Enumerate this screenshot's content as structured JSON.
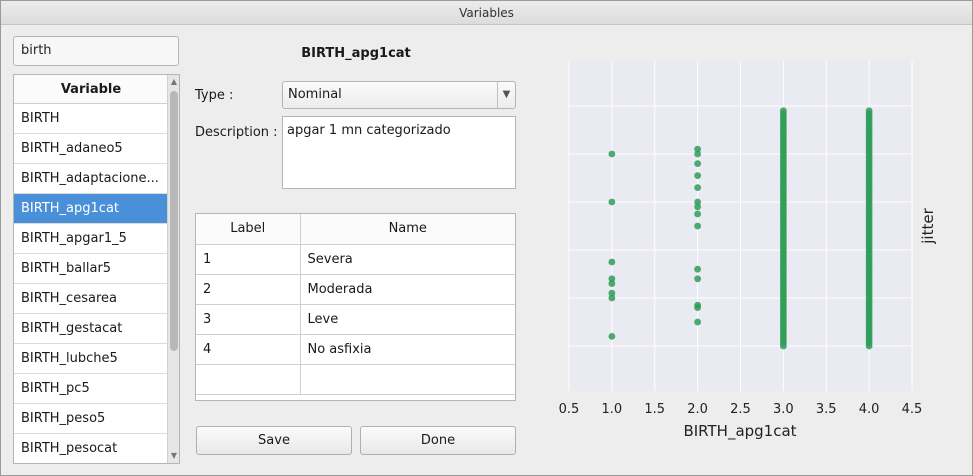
{
  "window": {
    "title": "Variables"
  },
  "search": {
    "value": "birth"
  },
  "variable_list": {
    "header": "Variable",
    "items": [
      "BIRTH",
      "BIRTH_adaneo5",
      "BIRTH_adaptacione...",
      "BIRTH_apg1cat",
      "BIRTH_apgar1_5",
      "BIRTH_ballar5",
      "BIRTH_cesarea",
      "BIRTH_gestacat",
      "BIRTH_lubche5",
      "BIRTH_pc5",
      "BIRTH_peso5",
      "BIRTH_pesocat"
    ],
    "selected_index": 3
  },
  "detail": {
    "variable_name": "BIRTH_apg1cat",
    "type_label": "Type :",
    "type_value": "Nominal",
    "description_label": "Description :",
    "description_value": "apgar 1 mn categorizado"
  },
  "labels_table": {
    "headers": [
      "Label",
      "Name"
    ],
    "rows": [
      [
        "1",
        "Severa"
      ],
      [
        "2",
        "Moderada"
      ],
      [
        "3",
        "Leve"
      ],
      [
        "4",
        "No asfixia"
      ],
      [
        "",
        ""
      ]
    ]
  },
  "buttons": {
    "save": "Save",
    "done": "Done"
  },
  "colors": {
    "point": "#2e9e58",
    "plot_bg": "#eaeaf2",
    "selection": "#4a90d9"
  },
  "chart_data": {
    "type": "scatter",
    "xlabel": "BIRTH_apg1cat",
    "ylabel": "jitter",
    "xlim": [
      0.5,
      4.5
    ],
    "xticks": [
      "0.5",
      "1.0",
      "1.5",
      "2.0",
      "2.5",
      "3.0",
      "3.5",
      "4.0",
      "4.5"
    ],
    "ylim": [
      0,
      1
    ],
    "grid": true,
    "y_tick_labels_shown": false,
    "series": [
      {
        "x": 1.0,
        "y": [
          0.8,
          0.6,
          0.35,
          0.28,
          0.26,
          0.22,
          0.2,
          0.04
        ]
      },
      {
        "x": 2.0,
        "y": [
          0.82,
          0.8,
          0.76,
          0.71,
          0.66,
          0.6,
          0.58,
          0.55,
          0.5,
          0.32,
          0.28,
          0.17,
          0.16,
          0.1
        ]
      },
      {
        "x": 3.0,
        "range": [
          0.0,
          0.98
        ],
        "dense": true
      },
      {
        "x": 4.0,
        "range": [
          0.0,
          0.98
        ],
        "dense": true
      }
    ]
  }
}
